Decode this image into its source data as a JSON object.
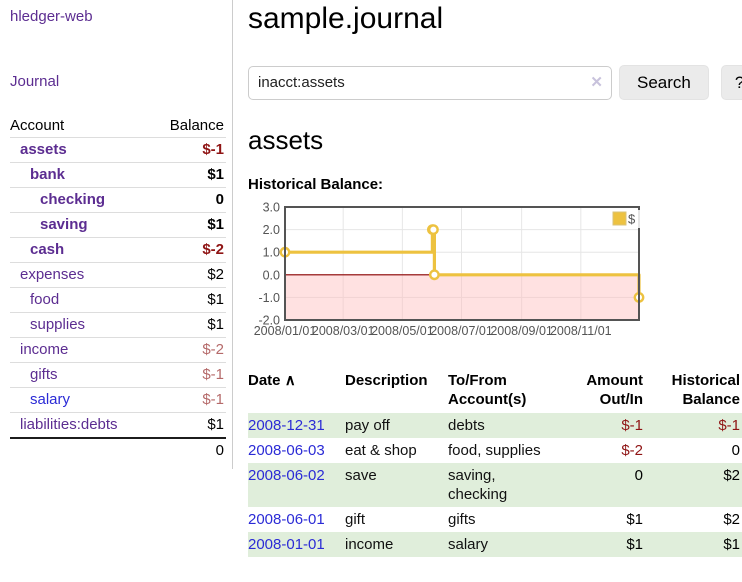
{
  "app": {
    "brand": "hledger-web"
  },
  "sidebar": {
    "nav": {
      "journal": "Journal"
    },
    "table_headers": {
      "account": "Account",
      "balance": "Balance"
    },
    "accounts": [
      {
        "name": "assets",
        "indent": 1,
        "bold": true,
        "balance": "$-1",
        "balance_style": "neg-strong"
      },
      {
        "name": "bank",
        "indent": 2,
        "bold": true,
        "balance": "$1",
        "balance_style": "pos-strong"
      },
      {
        "name": "checking",
        "indent": 3,
        "bold": true,
        "balance": "0",
        "balance_style": "pos-strong"
      },
      {
        "name": "saving",
        "indent": 3,
        "bold": true,
        "balance": "$1",
        "balance_style": "pos-strong"
      },
      {
        "name": "cash",
        "indent": 2,
        "bold": true,
        "balance": "$-2",
        "balance_style": "neg-strong"
      },
      {
        "name": "expenses",
        "indent": 1,
        "bold": false,
        "balance": "$2",
        "balance_style": "pos"
      },
      {
        "name": "food",
        "indent": 2,
        "bold": false,
        "balance": "$1",
        "balance_style": "pos"
      },
      {
        "name": "supplies",
        "indent": 2,
        "bold": false,
        "balance": "$1",
        "balance_style": "pos"
      },
      {
        "name": "income",
        "indent": 1,
        "bold": false,
        "balance": "$-2",
        "balance_style": "neg-muted"
      },
      {
        "name": "gifts",
        "indent": 2,
        "bold": false,
        "balance": "$-1",
        "balance_style": "neg-muted"
      },
      {
        "name": "salary",
        "indent": 2,
        "bold": false,
        "balance": "$-1",
        "balance_style": "neg-muted",
        "link_color": "blue"
      },
      {
        "name": "liabilities:debts",
        "indent": 1,
        "bold": false,
        "balance": "$1",
        "balance_style": "pos"
      }
    ],
    "total": "0"
  },
  "header": {
    "title": "sample.journal"
  },
  "search": {
    "value": "inacct:assets",
    "clear_icon": "✕",
    "button_label": "Search",
    "help_label": "?"
  },
  "account_page": {
    "heading": "assets",
    "chart_label": "Historical Balance:"
  },
  "chart_data": {
    "type": "line",
    "step": true,
    "title": "Historical Balance:",
    "series": [
      {
        "name": "$",
        "points": [
          [
            "2008-01-01",
            1
          ],
          [
            "2008-06-01",
            2
          ],
          [
            "2008-06-02",
            2
          ],
          [
            "2008-06-03",
            0
          ],
          [
            "2008-12-31",
            -1
          ]
        ]
      }
    ],
    "xrange": [
      "2008-01-01",
      "2008-12-31"
    ],
    "ylim": [
      -2,
      3
    ],
    "yticks": [
      3,
      2,
      1,
      0,
      -1,
      -2
    ],
    "ytick_labels": [
      "3.0",
      "2.0",
      "1.0",
      "0.0",
      "-1.0",
      "-2.0"
    ],
    "xticks": [
      "2008-01-01",
      "2008-03-01",
      "2008-05-01",
      "2008-07-01",
      "2008-09-01",
      "2008-11-01"
    ],
    "xtick_labels": [
      "2008/01/01",
      "2008/03/01",
      "2008/05/01",
      "2008/07/01",
      "2008/09/01",
      "2008/11/01"
    ],
    "legend": {
      "label": "$",
      "position": "top-right",
      "swatch_color": "#edc240"
    },
    "grid": true,
    "negative_region": {
      "below": 0,
      "fill": "#ffbdbd",
      "zero_line_color": "#8b0000"
    },
    "line_color": "#edc240",
    "border_color": "#545454"
  },
  "register": {
    "columns": {
      "date": "Date",
      "sort_arrow": "∧",
      "description": "Description",
      "accounts_line1": "To/From",
      "accounts_line2": "Account(s)",
      "amount_line1": "Amount",
      "amount_line2": "Out/In",
      "historical_line1": "Historical",
      "historical_line2": "Balance"
    },
    "rows": [
      {
        "date": "2008-12-31",
        "description": "pay off",
        "accounts": "debts",
        "amount": "$-1",
        "amount_neg": true,
        "historical": "$-1",
        "historical_neg": true
      },
      {
        "date": "2008-06-03",
        "description": "eat & shop",
        "accounts": "food, supplies",
        "amount": "$-2",
        "amount_neg": true,
        "historical": "0",
        "historical_neg": false
      },
      {
        "date": "2008-06-02",
        "description": "save",
        "accounts": "saving, checking",
        "amount": "0",
        "amount_neg": false,
        "historical": "$2",
        "historical_neg": false
      },
      {
        "date": "2008-06-01",
        "description": "gift",
        "accounts": "gifts",
        "amount": "$1",
        "amount_neg": false,
        "historical": "$2",
        "historical_neg": false
      },
      {
        "date": "2008-01-01",
        "description": "income",
        "accounts": "salary",
        "amount": "$1",
        "amount_neg": false,
        "historical": "$1",
        "historical_neg": false
      }
    ]
  },
  "colors": {
    "link_purple": "#5c2d91",
    "link_blue": "#2b2bd6",
    "negative_strong": "#8f1414",
    "negative_muted": "#b56a6a",
    "row_stripe_green": "#e0eedb",
    "chart_gold": "#edc240"
  }
}
